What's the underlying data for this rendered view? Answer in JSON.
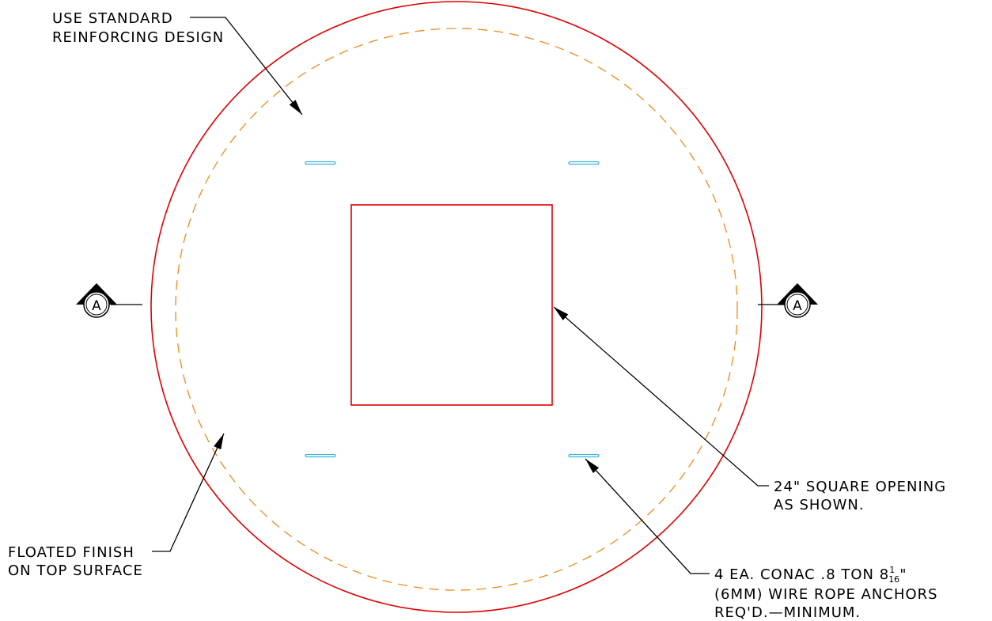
{
  "notes": {
    "reinforcing": {
      "lines": [
        "USE STANDARD",
        "REINFORCING DESIGN"
      ]
    },
    "finish": {
      "lines": [
        "FLOATED FINISH",
        "ON TOP SURFACE"
      ]
    },
    "opening": {
      "lines": [
        "24\" SQUARE OPENING",
        "AS SHOWN."
      ]
    },
    "anchors": {
      "first_line": {
        "text": "4 EA. CONAC .8 TON 8",
        "numerator": "1",
        "denominator": "16",
        "suffix": "\""
      },
      "lines": [
        "(6MM) WIRE ROPE ANCHORS",
        "REQ'D.—MINIMUM."
      ]
    }
  },
  "section_markers": {
    "left": "A",
    "right": "A"
  }
}
